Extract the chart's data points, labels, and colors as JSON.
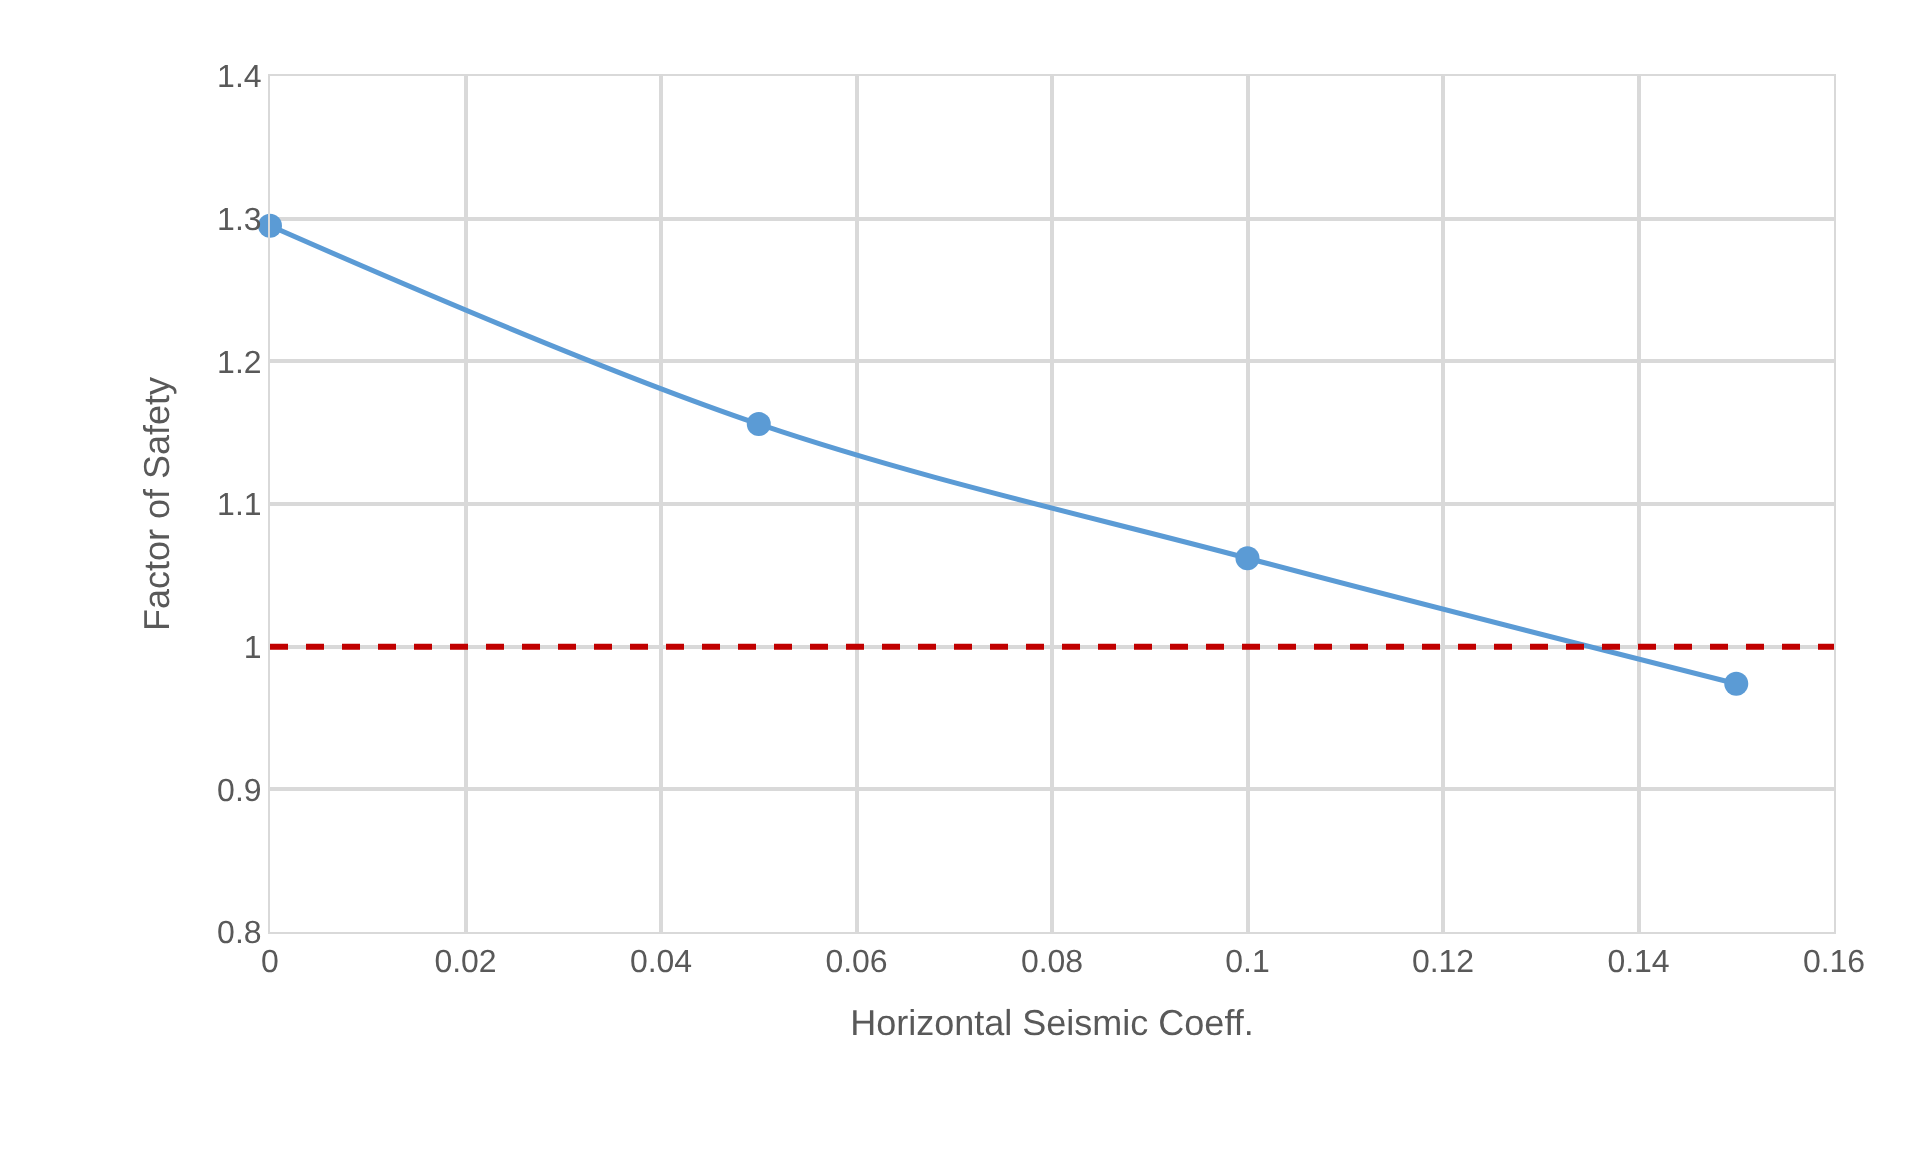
{
  "chart_data": {
    "type": "line",
    "xlabel": "Horizontal Seismic Coeff.",
    "ylabel": "Factor of Safety",
    "x": [
      0,
      0.05,
      0.1,
      0.15
    ],
    "series": [
      {
        "color": "#5b9bd5",
        "values": [
          1.295,
          1.156,
          1.062,
          0.974
        ]
      }
    ],
    "xlim": [
      0,
      0.16
    ],
    "xticks": [
      0,
      0.02,
      0.04,
      0.06,
      0.08,
      0.1,
      0.12,
      0.14,
      0.16
    ],
    "ylim": [
      0.8,
      1.4
    ],
    "yticks": [
      0.8,
      0.9,
      1,
      1.1,
      1.2,
      1.3,
      1.4
    ],
    "ref_lines": [
      {
        "axis": "y",
        "value": 1,
        "label": null,
        "color": "#c00000",
        "line_style": "dashed"
      }
    ],
    "grid": true,
    "marker": "circle",
    "line_style": "solid"
  }
}
